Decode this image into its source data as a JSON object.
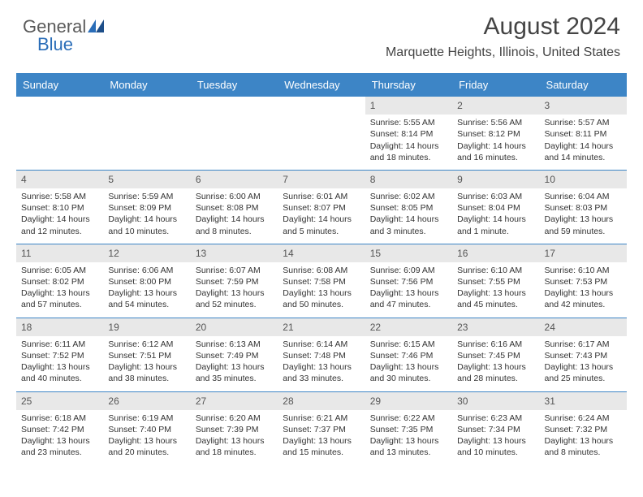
{
  "logo": {
    "text1": "General",
    "text2": "Blue"
  },
  "title": "August 2024",
  "subtitle": "Marquette Heights, Illinois, United States",
  "colors": {
    "header_bg": "#3d85c6",
    "header_text": "#ffffff",
    "daynum_bg": "#e8e8e8",
    "text": "#333333",
    "logo_gray": "#5a5a5a",
    "logo_blue": "#2a6db8"
  },
  "day_headers": [
    "Sunday",
    "Monday",
    "Tuesday",
    "Wednesday",
    "Thursday",
    "Friday",
    "Saturday"
  ],
  "weeks": [
    [
      null,
      null,
      null,
      null,
      {
        "n": "1",
        "sr": "5:55 AM",
        "ss": "8:14 PM",
        "dl": "14 hours and 18 minutes."
      },
      {
        "n": "2",
        "sr": "5:56 AM",
        "ss": "8:12 PM",
        "dl": "14 hours and 16 minutes."
      },
      {
        "n": "3",
        "sr": "5:57 AM",
        "ss": "8:11 PM",
        "dl": "14 hours and 14 minutes."
      }
    ],
    [
      {
        "n": "4",
        "sr": "5:58 AM",
        "ss": "8:10 PM",
        "dl": "14 hours and 12 minutes."
      },
      {
        "n": "5",
        "sr": "5:59 AM",
        "ss": "8:09 PM",
        "dl": "14 hours and 10 minutes."
      },
      {
        "n": "6",
        "sr": "6:00 AM",
        "ss": "8:08 PM",
        "dl": "14 hours and 8 minutes."
      },
      {
        "n": "7",
        "sr": "6:01 AM",
        "ss": "8:07 PM",
        "dl": "14 hours and 5 minutes."
      },
      {
        "n": "8",
        "sr": "6:02 AM",
        "ss": "8:05 PM",
        "dl": "14 hours and 3 minutes."
      },
      {
        "n": "9",
        "sr": "6:03 AM",
        "ss": "8:04 PM",
        "dl": "14 hours and 1 minute."
      },
      {
        "n": "10",
        "sr": "6:04 AM",
        "ss": "8:03 PM",
        "dl": "13 hours and 59 minutes."
      }
    ],
    [
      {
        "n": "11",
        "sr": "6:05 AM",
        "ss": "8:02 PM",
        "dl": "13 hours and 57 minutes."
      },
      {
        "n": "12",
        "sr": "6:06 AM",
        "ss": "8:00 PM",
        "dl": "13 hours and 54 minutes."
      },
      {
        "n": "13",
        "sr": "6:07 AM",
        "ss": "7:59 PM",
        "dl": "13 hours and 52 minutes."
      },
      {
        "n": "14",
        "sr": "6:08 AM",
        "ss": "7:58 PM",
        "dl": "13 hours and 50 minutes."
      },
      {
        "n": "15",
        "sr": "6:09 AM",
        "ss": "7:56 PM",
        "dl": "13 hours and 47 minutes."
      },
      {
        "n": "16",
        "sr": "6:10 AM",
        "ss": "7:55 PM",
        "dl": "13 hours and 45 minutes."
      },
      {
        "n": "17",
        "sr": "6:10 AM",
        "ss": "7:53 PM",
        "dl": "13 hours and 42 minutes."
      }
    ],
    [
      {
        "n": "18",
        "sr": "6:11 AM",
        "ss": "7:52 PM",
        "dl": "13 hours and 40 minutes."
      },
      {
        "n": "19",
        "sr": "6:12 AM",
        "ss": "7:51 PM",
        "dl": "13 hours and 38 minutes."
      },
      {
        "n": "20",
        "sr": "6:13 AM",
        "ss": "7:49 PM",
        "dl": "13 hours and 35 minutes."
      },
      {
        "n": "21",
        "sr": "6:14 AM",
        "ss": "7:48 PM",
        "dl": "13 hours and 33 minutes."
      },
      {
        "n": "22",
        "sr": "6:15 AM",
        "ss": "7:46 PM",
        "dl": "13 hours and 30 minutes."
      },
      {
        "n": "23",
        "sr": "6:16 AM",
        "ss": "7:45 PM",
        "dl": "13 hours and 28 minutes."
      },
      {
        "n": "24",
        "sr": "6:17 AM",
        "ss": "7:43 PM",
        "dl": "13 hours and 25 minutes."
      }
    ],
    [
      {
        "n": "25",
        "sr": "6:18 AM",
        "ss": "7:42 PM",
        "dl": "13 hours and 23 minutes."
      },
      {
        "n": "26",
        "sr": "6:19 AM",
        "ss": "7:40 PM",
        "dl": "13 hours and 20 minutes."
      },
      {
        "n": "27",
        "sr": "6:20 AM",
        "ss": "7:39 PM",
        "dl": "13 hours and 18 minutes."
      },
      {
        "n": "28",
        "sr": "6:21 AM",
        "ss": "7:37 PM",
        "dl": "13 hours and 15 minutes."
      },
      {
        "n": "29",
        "sr": "6:22 AM",
        "ss": "7:35 PM",
        "dl": "13 hours and 13 minutes."
      },
      {
        "n": "30",
        "sr": "6:23 AM",
        "ss": "7:34 PM",
        "dl": "13 hours and 10 minutes."
      },
      {
        "n": "31",
        "sr": "6:24 AM",
        "ss": "7:32 PM",
        "dl": "13 hours and 8 minutes."
      }
    ]
  ],
  "labels": {
    "sunrise": "Sunrise: ",
    "sunset": "Sunset: ",
    "daylight": "Daylight: "
  }
}
